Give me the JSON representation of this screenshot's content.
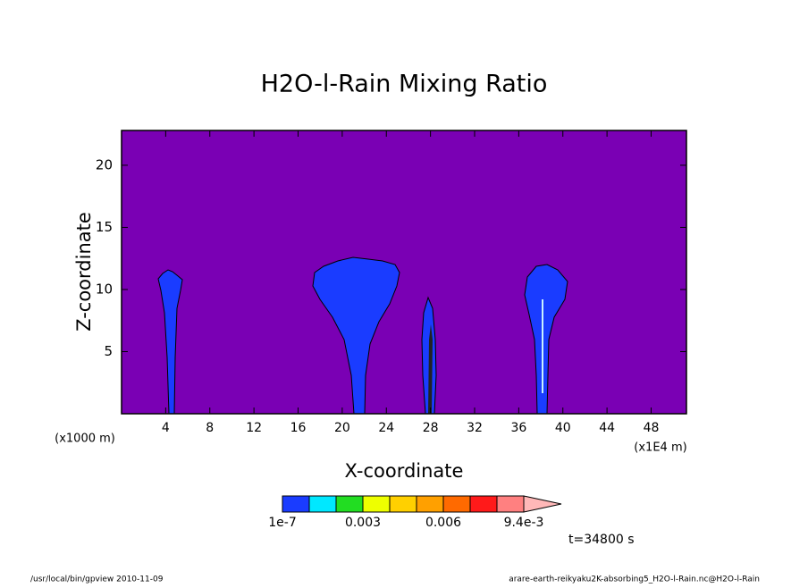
{
  "chart_data": {
    "type": "contour",
    "title": "H2O-l-Rain Mixing Ratio",
    "xlabel": "X-coordinate",
    "ylabel": "Z-coordinate",
    "x_unit_left": "(x1000 m)",
    "x_unit_right": "(x1E4 m)",
    "xlim": [
      0,
      51.2
    ],
    "ylim": [
      0,
      22.8
    ],
    "xticks": [
      4,
      8,
      12,
      16,
      20,
      24,
      28,
      32,
      36,
      40,
      44,
      48
    ],
    "yticks": [
      5,
      10,
      15,
      20
    ],
    "background_color": "#7a00b4",
    "colorbar": {
      "colors": [
        "#1a3cff",
        "#00e8ff",
        "#22dd22",
        "#eeff00",
        "#ffd000",
        "#ffa000",
        "#ff6a00",
        "#ff1a1a",
        "#ff8080"
      ],
      "extend_color": "#ffb8b8",
      "labels": [
        "1e-7",
        "0.003",
        "0.006",
        "9.4e-3"
      ]
    },
    "time_label": "t=34800 s",
    "footer_left": "/usr/local/bin/gpview  2010-11-09",
    "footer_right": "arare-earth-reikyaku2K-absorbing5_H2O-l-Rain.nc@H2O-l-Rain"
  }
}
